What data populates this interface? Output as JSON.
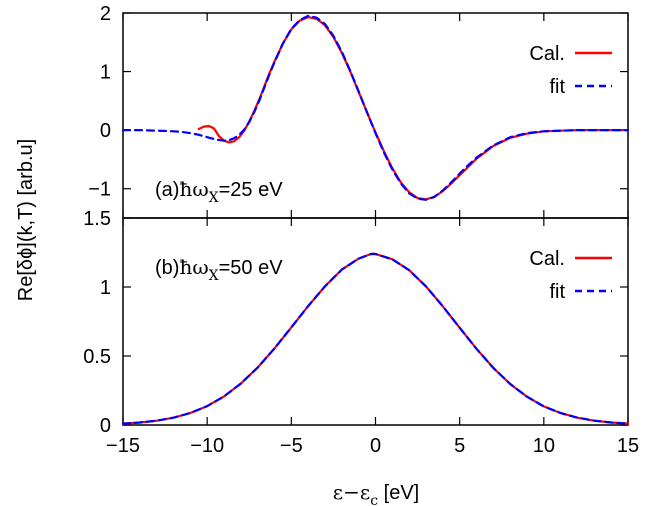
{
  "chart_data": [
    {
      "type": "line",
      "panel": "a",
      "annotation": {
        "prefix": "(a)",
        "hbar": "ħ",
        "omega": "ω",
        "sub": "X",
        "value": "=25 eV"
      },
      "xlim": [
        -15,
        15
      ],
      "ylim": [
        -1.5,
        2
      ],
      "yticks": [
        -1,
        0,
        1,
        2
      ],
      "ytick_labels": [
        "−1",
        "0",
        "1",
        "2"
      ],
      "legend_position": "top-right",
      "series": [
        {
          "name": "Cal.",
          "color": "#ff0000",
          "style": "solid",
          "x": [
            -10.5,
            -10.2,
            -9.9,
            -9.6,
            -9.3,
            -9.0,
            -8.7,
            -8.4,
            -8.1,
            -7.8,
            -7.5,
            -7.2,
            -6.9,
            -6.6,
            -6.3,
            -6.0,
            -5.5,
            -5.0,
            -4.5,
            -4.0,
            -3.5,
            -3.0,
            -2.5,
            -2.0,
            -1.5,
            -1.0,
            -0.5,
            0.0,
            0.5,
            1.0,
            1.5,
            2.0,
            2.5,
            3.0,
            3.5,
            4.0,
            4.5,
            5.0,
            5.5,
            6.0,
            7.0,
            8.0,
            9.0,
            10.0,
            11.0,
            12.0,
            13.0,
            14.0,
            15.0
          ],
          "y": [
            0.02,
            0.06,
            0.07,
            0.03,
            -0.1,
            -0.18,
            -0.21,
            -0.19,
            -0.12,
            -0.01,
            0.15,
            0.33,
            0.53,
            0.75,
            0.97,
            1.17,
            1.48,
            1.72,
            1.87,
            1.93,
            1.9,
            1.79,
            1.59,
            1.32,
            1.0,
            0.65,
            0.3,
            -0.04,
            -0.36,
            -0.65,
            -0.89,
            -1.06,
            -1.16,
            -1.18,
            -1.14,
            -1.04,
            -0.91,
            -0.77,
            -0.63,
            -0.49,
            -0.27,
            -0.13,
            -0.06,
            -0.02,
            -0.01,
            0.0,
            0.0,
            0.0,
            0.0
          ]
        },
        {
          "name": "fit",
          "color": "#0000ff",
          "style": "dashed",
          "x": [
            -15,
            -14,
            -13,
            -12,
            -11.5,
            -11,
            -10.5,
            -10,
            -9.5,
            -9.0,
            -8.7,
            -8.4,
            -8.1,
            -7.8,
            -7.5,
            -7.2,
            -6.9,
            -6.6,
            -6.3,
            -6.0,
            -5.5,
            -5.0,
            -4.5,
            -4.0,
            -3.5,
            -3.0,
            -2.5,
            -2.0,
            -1.5,
            -1.0,
            -0.5,
            0.0,
            0.5,
            1.0,
            1.5,
            2.0,
            2.5,
            3.0,
            3.5,
            4.0,
            4.5,
            5.0,
            5.5,
            6.0,
            7.0,
            8.0,
            9.0,
            10.0,
            11.0,
            12.0,
            13.0,
            14.0,
            15.0
          ],
          "y": [
            0.0,
            0.0,
            -0.01,
            -0.02,
            -0.03,
            -0.05,
            -0.08,
            -0.12,
            -0.16,
            -0.18,
            -0.17,
            -0.14,
            -0.08,
            0.01,
            0.14,
            0.31,
            0.51,
            0.73,
            0.95,
            1.16,
            1.48,
            1.73,
            1.88,
            1.95,
            1.92,
            1.81,
            1.61,
            1.34,
            1.01,
            0.66,
            0.3,
            -0.05,
            -0.38,
            -0.67,
            -0.91,
            -1.08,
            -1.17,
            -1.19,
            -1.14,
            -1.03,
            -0.89,
            -0.74,
            -0.6,
            -0.47,
            -0.26,
            -0.12,
            -0.05,
            -0.02,
            -0.01,
            0.0,
            0.0,
            0.0,
            0.0
          ]
        }
      ]
    },
    {
      "type": "line",
      "panel": "b",
      "annotation": {
        "prefix": "(b)",
        "hbar": "ħ",
        "omega": "ω",
        "sub": "X",
        "value": "=50 eV"
      },
      "xlim": [
        -15,
        15
      ],
      "ylim": [
        0,
        1.5
      ],
      "yticks": [
        0,
        0.5,
        1,
        1.5
      ],
      "ytick_labels": [
        "0",
        "0.5",
        "1",
        "1.5"
      ],
      "xticks": [
        -15,
        -10,
        -5,
        0,
        5,
        10,
        15
      ],
      "xtick_labels": [
        "−15",
        "−10",
        "−5",
        "0",
        "5",
        "10",
        "15"
      ],
      "legend_position": "top-right",
      "series": [
        {
          "name": "Cal.",
          "color": "#ff0000",
          "style": "solid",
          "x": [
            -15,
            -14,
            -13,
            -12,
            -11,
            -10,
            -9,
            -8,
            -7,
            -6,
            -5,
            -4,
            -3,
            -2,
            -1,
            -0.25,
            0,
            1,
            2,
            3,
            4,
            5,
            6,
            7,
            8,
            9,
            10,
            11,
            12,
            13,
            14,
            15
          ],
          "y": [
            0.01,
            0.018,
            0.031,
            0.053,
            0.087,
            0.137,
            0.207,
            0.3,
            0.417,
            0.555,
            0.707,
            0.862,
            1.005,
            1.126,
            1.206,
            1.24,
            1.239,
            1.201,
            1.122,
            1.004,
            0.86,
            0.704,
            0.552,
            0.414,
            0.297,
            0.205,
            0.135,
            0.086,
            0.053,
            0.031,
            0.018,
            0.01
          ]
        },
        {
          "name": "fit",
          "color": "#0000ff",
          "style": "dashed",
          "x": [
            -15,
            -14,
            -13,
            -12,
            -11,
            -10,
            -9,
            -8,
            -7,
            -6,
            -5,
            -4,
            -3,
            -2,
            -1,
            -0.25,
            0,
            1,
            2,
            3,
            4,
            5,
            6,
            7,
            8,
            9,
            10,
            11,
            12,
            13,
            14,
            15
          ],
          "y": [
            0.01,
            0.018,
            0.031,
            0.053,
            0.087,
            0.137,
            0.207,
            0.3,
            0.417,
            0.555,
            0.707,
            0.862,
            1.005,
            1.126,
            1.206,
            1.24,
            1.239,
            1.201,
            1.122,
            1.004,
            0.86,
            0.704,
            0.552,
            0.414,
            0.297,
            0.205,
            0.135,
            0.086,
            0.053,
            0.031,
            0.018,
            0.01
          ]
        }
      ]
    }
  ],
  "shared": {
    "ylabel": "Re[δϕ](k,T) [arb.u]",
    "xlabel": {
      "eps": "ε−ε",
      "sub": "c",
      "unit": " [eV]"
    }
  }
}
